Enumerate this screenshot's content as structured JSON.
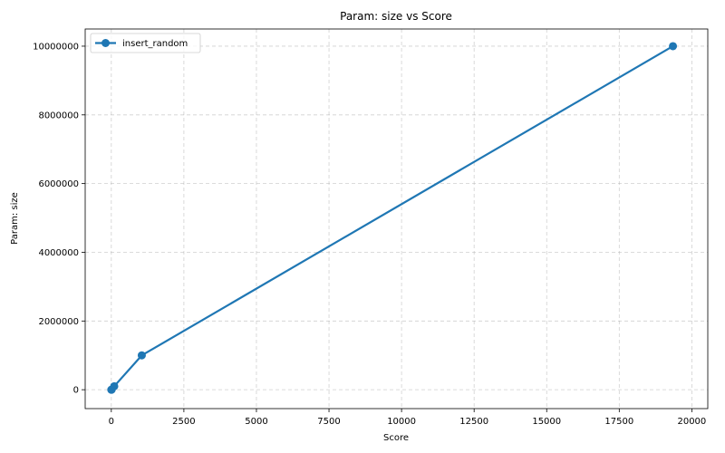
{
  "chart_data": {
    "type": "line",
    "title": "Param: size vs Score",
    "xlabel": "Score",
    "ylabel": "Param: size",
    "xlim": [
      -900,
      20550
    ],
    "ylim": [
      -550000,
      10500000
    ],
    "xticks": [
      0,
      2500,
      5000,
      7500,
      10000,
      12500,
      15000,
      17500,
      20000
    ],
    "xtick_labels": [
      "0",
      "2500",
      "5000",
      "7500",
      "10000",
      "12500",
      "15000",
      "17500",
      "20000"
    ],
    "yticks": [
      0,
      2000000,
      4000000,
      6000000,
      8000000,
      10000000
    ],
    "ytick_labels": [
      "0",
      "2000000",
      "4000000",
      "6000000",
      "8000000",
      "10000000"
    ],
    "grid": true,
    "legend_position": "top-left",
    "series": [
      {
        "name": "insert_random",
        "color": "#1f77b4",
        "marker": "circle",
        "x": [
          1,
          10,
          100,
          1050,
          19350
        ],
        "y": [
          100,
          1000,
          100000,
          1000000,
          10000000
        ]
      }
    ]
  }
}
